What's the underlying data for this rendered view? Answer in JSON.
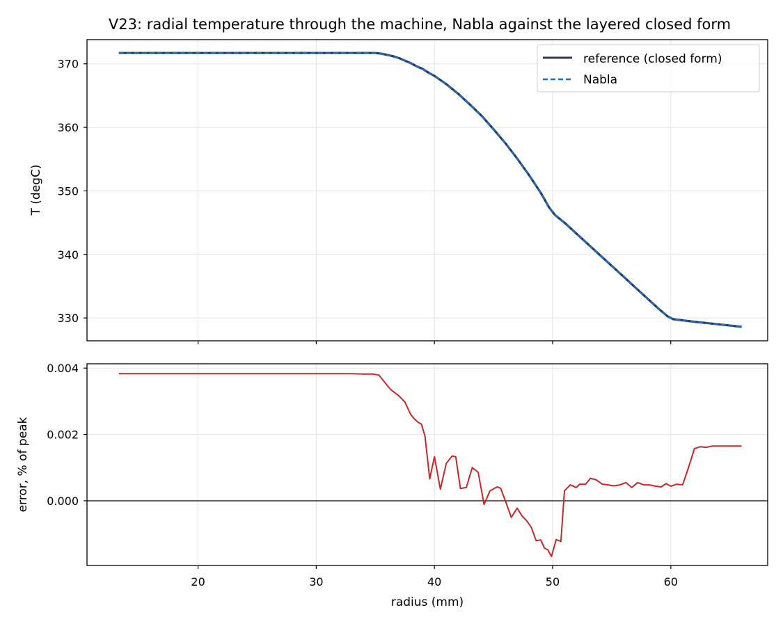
{
  "chart_data": {
    "type": "line",
    "title": "V23: radial temperature through the machine, Nabla against the layered closed form",
    "xlabel": "radius (mm)",
    "x_ticks": [
      20,
      30,
      40,
      50,
      60
    ],
    "xlim": [
      10.6,
      68.2
    ],
    "legend_location": "upper right",
    "grid": true,
    "panels": [
      {
        "ylabel": "T (degC)",
        "ylim": [
          326.4,
          373.8
        ],
        "y_ticks": [
          330,
          340,
          350,
          360,
          370
        ],
        "series": [
          {
            "name": "reference (closed form)",
            "style": "solid",
            "color": "#2e3a4f",
            "x": [
              13.3,
              15,
              20,
              25,
              30,
              33,
              35,
              35.5,
              36,
              36.5,
              37,
              37.5,
              38,
              38.5,
              39,
              39.5,
              40,
              41,
              42,
              43,
              44,
              45,
              46,
              47,
              48,
              49,
              49.7,
              50.2,
              51,
              52,
              53,
              54,
              55,
              56,
              57,
              58,
              59,
              59.7,
              60.2,
              62,
              64,
              66
            ],
            "y": [
              371.7,
              371.7,
              371.7,
              371.7,
              371.7,
              371.7,
              371.7,
              371.6,
              371.4,
              371.2,
              370.9,
              370.5,
              370.1,
              369.6,
              369.2,
              368.6,
              368.1,
              366.8,
              365.3,
              363.6,
              361.8,
              359.7,
              357.5,
              355.1,
              352.5,
              349.7,
              347.4,
              346.2,
              345.0,
              343.3,
              341.6,
              339.9,
              338.2,
              336.5,
              334.8,
              333.1,
              331.4,
              330.3,
              329.8,
              329.4,
              329.0,
              328.6
            ]
          },
          {
            "name": "Nabla",
            "style": "dashed",
            "color": "#1f6bc2",
            "x": [
              13.3,
              15,
              20,
              25,
              30,
              33,
              35,
              35.5,
              36,
              36.5,
              37,
              37.5,
              38,
              38.5,
              39,
              39.5,
              40,
              41,
              42,
              43,
              44,
              45,
              46,
              47,
              48,
              49,
              49.7,
              50.2,
              51,
              52,
              53,
              54,
              55,
              56,
              57,
              58,
              59,
              59.7,
              60.2,
              62,
              64,
              66
            ],
            "y": [
              371.7,
              371.7,
              371.7,
              371.7,
              371.7,
              371.7,
              371.7,
              371.6,
              371.4,
              371.2,
              370.9,
              370.5,
              370.1,
              369.6,
              369.2,
              368.6,
              368.1,
              366.8,
              365.3,
              363.6,
              361.8,
              359.7,
              357.5,
              355.1,
              352.5,
              349.7,
              347.4,
              346.2,
              345.0,
              343.3,
              341.6,
              339.9,
              338.2,
              336.5,
              334.8,
              333.1,
              331.4,
              330.3,
              329.8,
              329.4,
              329.0,
              328.6
            ]
          }
        ]
      },
      {
        "ylabel": "error, % of peak",
        "ylim": [
          -0.00195,
          0.00413
        ],
        "y_ticks": [
          0.0,
          0.002,
          0.004
        ],
        "y_tick_labels": [
          "0.000",
          "0.002",
          "0.004"
        ],
        "zero_line": true,
        "series": [
          {
            "color": "#c62828",
            "style": "solid",
            "x": [
              13.3,
              15,
              20,
              25,
              30,
              33,
              34,
              34.8,
              35.3,
              36.3,
              37,
              37.5,
              38,
              38.3,
              38.6,
              38.9,
              39.2,
              39.6,
              40,
              40.5,
              41,
              41.5,
              41.8,
              42.2,
              42.7,
              43.2,
              43.7,
              44.2,
              44.7,
              45.3,
              45.6,
              46,
              46.5,
              47,
              47.4,
              47.8,
              48.2,
              48.6,
              49,
              49.3,
              49.6,
              49.9,
              50.3,
              50.7,
              51,
              51.5,
              52,
              52.3,
              52.8,
              53.2,
              53.7,
              54.2,
              54.7,
              55.2,
              55.7,
              56.2,
              56.7,
              57.2,
              57.7,
              58.2,
              58.7,
              59.2,
              59.6,
              60,
              60.5,
              61,
              61.5,
              62,
              62.5,
              63,
              63.5,
              64,
              64.5,
              65,
              66
            ],
            "y": [
              0.00383,
              0.00383,
              0.00383,
              0.00383,
              0.00383,
              0.00383,
              0.00382,
              0.00382,
              0.00379,
              0.00335,
              0.00316,
              0.00298,
              0.0026,
              0.00247,
              0.00237,
              0.00231,
              0.00195,
              0.00066,
              0.00133,
              0.00035,
              0.00113,
              0.00135,
              0.00133,
              0.00037,
              0.0004,
              0.001,
              0.00086,
              -0.00011,
              0.0003,
              0.00042,
              0.00038,
              0.0,
              -0.0005,
              -0.00022,
              -0.00045,
              -0.0006,
              -0.0008,
              -0.0012,
              -0.00118,
              -0.00142,
              -0.00148,
              -0.00168,
              -0.00117,
              -0.00122,
              0.0003,
              0.00048,
              0.0004,
              0.0005,
              0.0005,
              0.00068,
              0.00063,
              0.0005,
              0.00048,
              0.00045,
              0.00048,
              0.00055,
              0.0004,
              0.00055,
              0.00048,
              0.00048,
              0.00044,
              0.00042,
              0.00052,
              0.00044,
              0.0005,
              0.00048,
              0.001,
              0.00157,
              0.00163,
              0.00161,
              0.00165,
              0.00165,
              0.00165,
              0.00165,
              0.00165
            ]
          }
        ]
      }
    ]
  }
}
